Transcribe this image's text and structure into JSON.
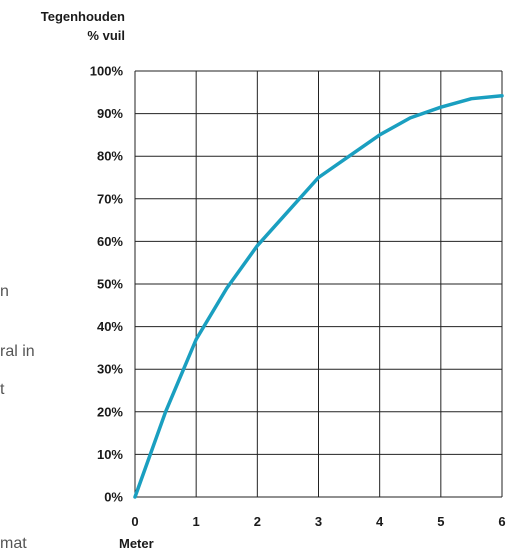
{
  "side_text": [
    "n",
    "ral in",
    "t",
    "mat"
  ],
  "chart_data": {
    "type": "line",
    "title": "Tegenhouden",
    "ylabel": "% vuil",
    "xlabel": "Meter",
    "x_ticks": [
      0,
      1,
      2,
      3,
      4,
      5,
      6
    ],
    "y_ticks": [
      "0%",
      "10%",
      "20%",
      "30%",
      "40%",
      "50%",
      "60%",
      "70%",
      "80%",
      "90%",
      "100%"
    ],
    "xlim": [
      0,
      6
    ],
    "ylim": [
      0,
      100
    ],
    "grid": true,
    "line_color": "#1a9fc0",
    "series": [
      {
        "x": [
          0,
          0.5,
          1,
          1.5,
          2,
          2.5,
          3,
          3.5,
          4,
          4.5,
          5,
          5.5,
          6
        ],
        "values": [
          0,
          20,
          37,
          49,
          59,
          67,
          75,
          80,
          85,
          89,
          91.5,
          93.5,
          94.2
        ]
      }
    ]
  }
}
